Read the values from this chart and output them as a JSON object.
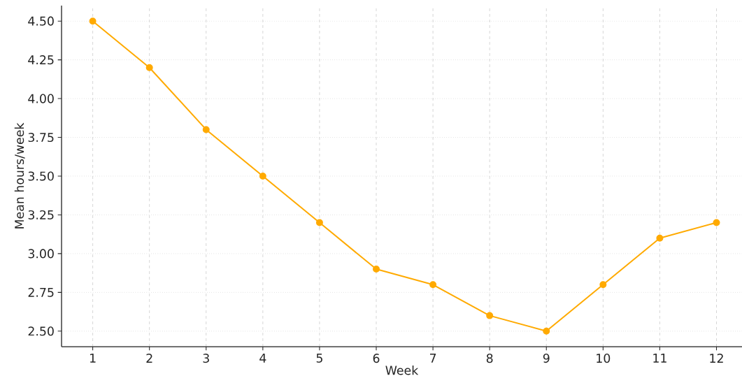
{
  "chart_data": {
    "type": "line",
    "xlabel": "Week",
    "ylabel": "Mean hours/week",
    "x": [
      1,
      2,
      3,
      4,
      5,
      6,
      7,
      8,
      9,
      10,
      11,
      12
    ],
    "series": [
      {
        "color": "#ffaa00",
        "values": [
          4.5,
          4.2,
          3.8,
          3.5,
          3.2,
          2.9,
          2.8,
          2.6,
          2.5,
          2.8,
          3.1,
          3.2
        ]
      }
    ],
    "xlim": [
      0.45,
      12.45
    ],
    "ylim": [
      2.4,
      4.6
    ],
    "xticks": [
      1,
      2,
      3,
      4,
      5,
      6,
      7,
      8,
      9,
      10,
      11,
      12
    ],
    "yticks": [
      {
        "value": 2.5,
        "label": "2.50"
      },
      {
        "value": 2.75,
        "label": "2.75"
      },
      {
        "value": 3.0,
        "label": "3.00"
      },
      {
        "value": 3.25,
        "label": "3.25"
      },
      {
        "value": 3.5,
        "label": "3.50"
      },
      {
        "value": 3.75,
        "label": "3.75"
      },
      {
        "value": 4.0,
        "label": "4.00"
      },
      {
        "value": 4.25,
        "label": "4.25"
      },
      {
        "value": 4.5,
        "label": "4.50"
      }
    ],
    "grid": true,
    "marker": "circle",
    "line_style": "solid"
  }
}
